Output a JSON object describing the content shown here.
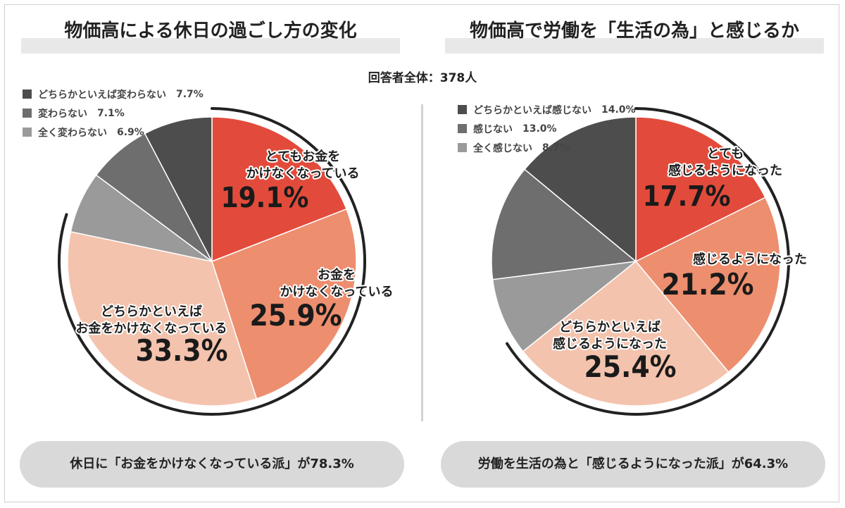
{
  "respondents": "回答者全体：378人",
  "chart_data": [
    {
      "type": "pie",
      "title": "物価高による休日の過ごし方の変化",
      "slices": [
        {
          "label": "とてもお金をかけなくなっている",
          "value": 19.1,
          "color": "#e24b3b"
        },
        {
          "label": "お金をかけなくなっている",
          "value": 25.9,
          "color": "#ed8e6f"
        },
        {
          "label": "どちらかといえばお金をかけなくなっている",
          "value": 33.3,
          "color": "#f4c3ad"
        },
        {
          "label": "全く変わらない",
          "value": 6.9,
          "color": "#9a9a9a"
        },
        {
          "label": "変わらない",
          "value": 7.1,
          "color": "#6e6e6e"
        },
        {
          "label": "どちらかといえば変わらない",
          "value": 7.7,
          "color": "#4d4d4d"
        }
      ],
      "slice_text": [
        {
          "lines": [
            "とてもお金を",
            "かけなくなっている"
          ],
          "pct": "19.1%"
        },
        {
          "lines": [
            "お金を",
            "かけなくなっている"
          ],
          "pct": "25.9%"
        },
        {
          "lines": [
            "どちらかといえば",
            "お金をかけなくなっている"
          ],
          "pct": "33.3%"
        }
      ],
      "legend": [
        {
          "label": "どちらかといえば変わらない",
          "pct": "7.7%",
          "color": "#4d4d4d"
        },
        {
          "label": "変わらない",
          "pct": "7.1%",
          "color": "#6e6e6e"
        },
        {
          "label": "全く変わらない",
          "pct": "6.9%",
          "color": "#9a9a9a"
        }
      ],
      "summary": "休日に「お金をかけなくなっている派」が78.3%"
    },
    {
      "type": "pie",
      "title": "物価高で労働を「生活の為」と感じるか",
      "slices": [
        {
          "label": "とても感じるようになった",
          "value": 17.7,
          "color": "#e24b3b"
        },
        {
          "label": "感じるようになった",
          "value": 21.2,
          "color": "#ed8e6f"
        },
        {
          "label": "どちらかといえば感じるようになった",
          "value": 25.4,
          "color": "#f4c3ad"
        },
        {
          "label": "全く感じない",
          "value": 8.7,
          "color": "#9a9a9a"
        },
        {
          "label": "感じない",
          "value": 13.0,
          "color": "#6e6e6e"
        },
        {
          "label": "どちらかといえば感じない",
          "value": 14.0,
          "color": "#4d4d4d"
        }
      ],
      "slice_text": [
        {
          "lines": [
            "とても",
            "感じるようになった"
          ],
          "pct": "17.7%"
        },
        {
          "lines": [
            "感じるようになった"
          ],
          "pct": "21.2%"
        },
        {
          "lines": [
            "どちらかといえば",
            "感じるようになった"
          ],
          "pct": "25.4%"
        }
      ],
      "legend": [
        {
          "label": "どちらかといえば感じない",
          "pct": "14.0%",
          "color": "#4d4d4d"
        },
        {
          "label": "感じない",
          "pct": "13.0%",
          "color": "#6e6e6e"
        },
        {
          "label": "全く感じない",
          "pct": "8.7%",
          "color": "#9a9a9a"
        }
      ],
      "summary": "労働を生活の為と「感じるようになった派」が64.3%"
    }
  ]
}
